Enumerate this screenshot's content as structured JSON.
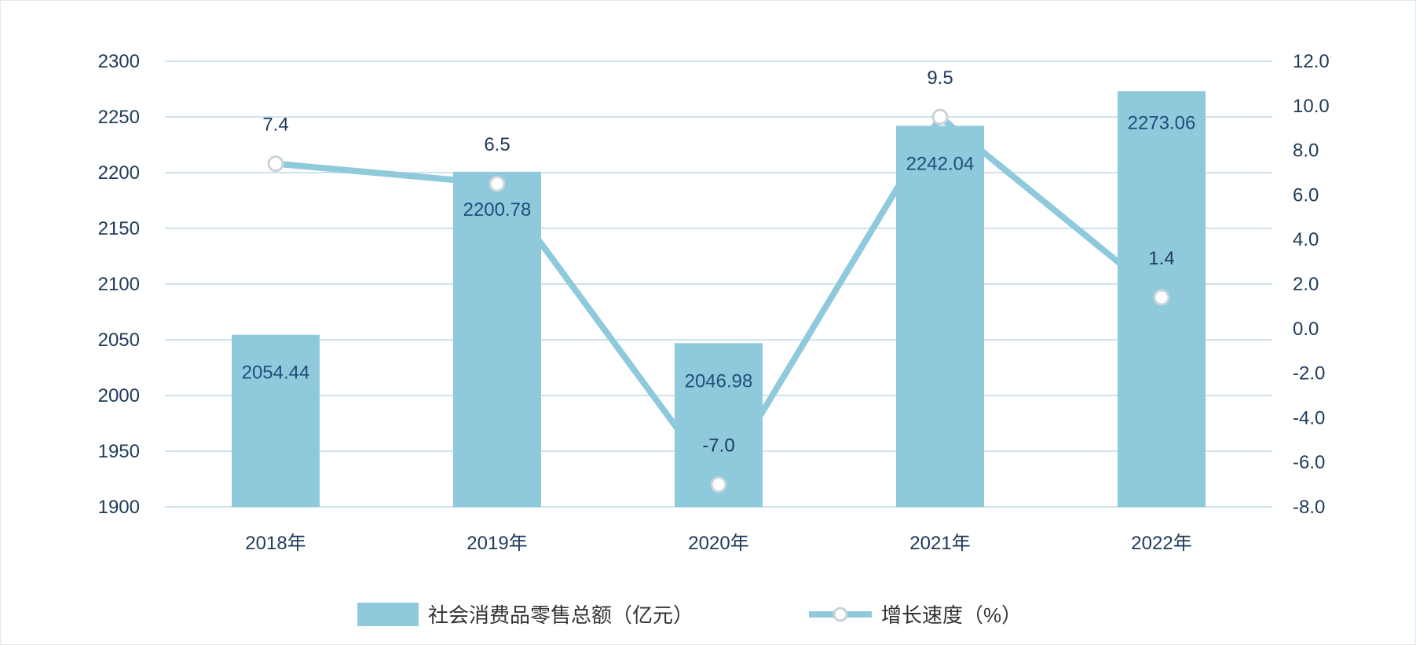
{
  "chart_data": {
    "type": "bar+line",
    "title": "",
    "categories": [
      "2018年",
      "2019年",
      "2020年",
      "2021年",
      "2022年"
    ],
    "series": [
      {
        "name": "社会消费品零售总额（亿元）",
        "type": "bar",
        "axis": "left",
        "values": [
          2054.44,
          2200.78,
          2046.98,
          2242.04,
          2273.06
        ],
        "labels": [
          "2054.44",
          "2200.78",
          "2046.98",
          "2242.04",
          "2273.06"
        ],
        "color": "#8ecadc"
      },
      {
        "name": "增长速度（%）",
        "type": "line",
        "axis": "right",
        "values": [
          7.4,
          6.5,
          -7.0,
          9.5,
          1.4
        ],
        "labels": [
          "7.4",
          "6.5",
          "-7.0",
          "9.5",
          "1.4"
        ],
        "color": "#8ecadc"
      }
    ],
    "left_axis": {
      "min": 1900,
      "max": 2300,
      "step": 50,
      "ticks": [
        "1900",
        "1950",
        "2000",
        "2050",
        "2100",
        "2150",
        "2200",
        "2250",
        "2300"
      ]
    },
    "right_axis": {
      "min": -8,
      "max": 12,
      "step": 2,
      "ticks": [
        "-8.0",
        "-6.0",
        "-4.0",
        "-2.0",
        "0.0",
        "2.0",
        "4.0",
        "6.0",
        "8.0",
        "10.0",
        "12.0"
      ]
    },
    "grid": true,
    "legend": "bottom-center"
  }
}
